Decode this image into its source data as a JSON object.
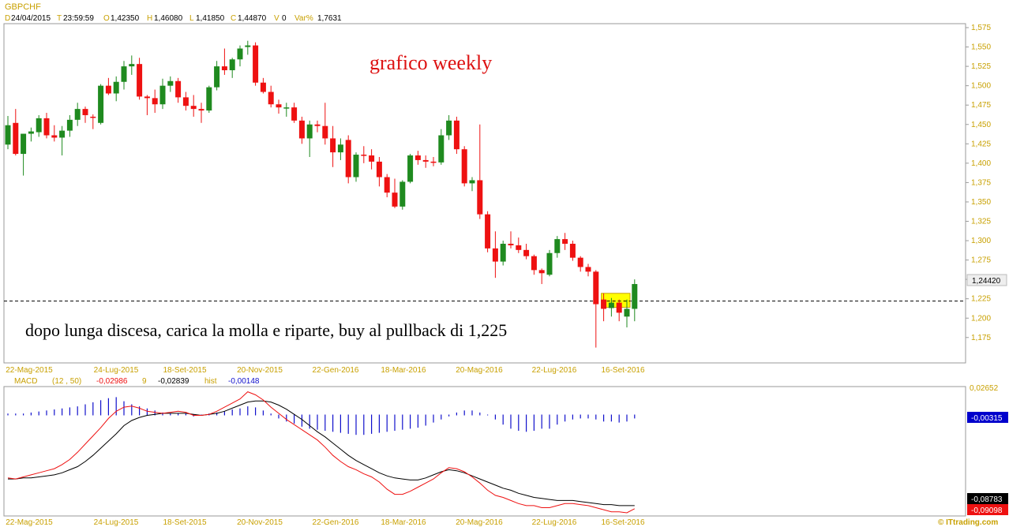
{
  "symbol": "GBPCHF",
  "header": {
    "d_label": "D",
    "date": "24/04/2015",
    "t_label": "T",
    "time": "23:59:59",
    "o_label": "O",
    "open": "1,42350",
    "h_label": "H",
    "high": "1,46080",
    "l_label": "L",
    "low": "1,41850",
    "c_label": "C",
    "close": "1,44870",
    "v_label": "V",
    "volume": "0",
    "var_label": "Var%",
    "var": "1,7631"
  },
  "annotations": {
    "title": "grafico weekly",
    "note": "dopo lunga discesa, carica la molla e riparte, buy al pullback di 1,225"
  },
  "price_badge": "1,24420",
  "macd_header": {
    "name": "MACD",
    "params": "(12 , 50)",
    "macd_value": "-0,02986",
    "signal_label": "9",
    "signal_value": "-0,02839",
    "hist_label": "hist",
    "hist_value": "-0,00148"
  },
  "macd_axis": {
    "top_tick": "0,02652",
    "hist_badge": "-0,00315",
    "signal_badge": "-0,08783",
    "macd_badge": "-0,09098"
  },
  "x_tick_labels": [
    "22-Mag-2015",
    "24-Lug-2015",
    "18-Set-2015",
    "20-Nov-2015",
    "22-Gen-2016",
    "18-Mar-2016",
    "20-Mag-2016",
    "22-Lug-2016",
    "16-Set-2016"
  ],
  "y_tick_labels": [
    "1,575",
    "1,550",
    "1,525",
    "1,500",
    "1,475",
    "1,450",
    "1,425",
    "1,400",
    "1,375",
    "1,350",
    "1,325",
    "1,300",
    "1,275",
    "1,250",
    "1,225",
    "1,200",
    "1,175"
  ],
  "watermark": "© ITtrading.com",
  "colors": {
    "up": "#1f8a1f",
    "down": "#ee1111",
    "title": "#dd1111",
    "macd": "#ee1111",
    "signal": "#000000",
    "hist": "#1010cc",
    "highlight": "#ffff00",
    "axis_text": "#c8a000"
  },
  "chart_data": [
    {
      "type": "candlestick",
      "title": "GBPCHF",
      "ylim": [
        1.15,
        1.58
      ],
      "support_level": 1.222,
      "candles": [
        {
          "o": 1.424,
          "h": 1.461,
          "l": 1.418,
          "c": 1.449
        },
        {
          "o": 1.452,
          "h": 1.47,
          "l": 1.41,
          "c": 1.412
        },
        {
          "o": 1.412,
          "h": 1.438,
          "l": 1.384,
          "c": 1.438
        },
        {
          "o": 1.438,
          "h": 1.446,
          "l": 1.428,
          "c": 1.441
        },
        {
          "o": 1.44,
          "h": 1.462,
          "l": 1.434,
          "c": 1.458
        },
        {
          "o": 1.458,
          "h": 1.465,
          "l": 1.432,
          "c": 1.436
        },
        {
          "o": 1.436,
          "h": 1.449,
          "l": 1.428,
          "c": 1.433
        },
        {
          "o": 1.433,
          "h": 1.448,
          "l": 1.41,
          "c": 1.442
        },
        {
          "o": 1.442,
          "h": 1.462,
          "l": 1.434,
          "c": 1.456
        },
        {
          "o": 1.456,
          "h": 1.478,
          "l": 1.448,
          "c": 1.47
        },
        {
          "o": 1.47,
          "h": 1.473,
          "l": 1.452,
          "c": 1.462
        },
        {
          "o": 1.46,
          "h": 1.463,
          "l": 1.444,
          "c": 1.459
        },
        {
          "o": 1.452,
          "h": 1.502,
          "l": 1.45,
          "c": 1.5
        },
        {
          "o": 1.5,
          "h": 1.51,
          "l": 1.488,
          "c": 1.49
        },
        {
          "o": 1.49,
          "h": 1.512,
          "l": 1.48,
          "c": 1.505
        },
        {
          "o": 1.505,
          "h": 1.532,
          "l": 1.495,
          "c": 1.525
        },
        {
          "o": 1.525,
          "h": 1.539,
          "l": 1.514,
          "c": 1.528
        },
        {
          "o": 1.528,
          "h": 1.536,
          "l": 1.482,
          "c": 1.486
        },
        {
          "o": 1.486,
          "h": 1.488,
          "l": 1.462,
          "c": 1.484
        },
        {
          "o": 1.484,
          "h": 1.495,
          "l": 1.465,
          "c": 1.476
        },
        {
          "o": 1.476,
          "h": 1.509,
          "l": 1.47,
          "c": 1.5
        },
        {
          "o": 1.5,
          "h": 1.512,
          "l": 1.492,
          "c": 1.506
        },
        {
          "o": 1.506,
          "h": 1.51,
          "l": 1.478,
          "c": 1.485
        },
        {
          "o": 1.485,
          "h": 1.492,
          "l": 1.468,
          "c": 1.474
        },
        {
          "o": 1.474,
          "h": 1.488,
          "l": 1.46,
          "c": 1.47
        },
        {
          "o": 1.47,
          "h": 1.478,
          "l": 1.452,
          "c": 1.468
        },
        {
          "o": 1.468,
          "h": 1.5,
          "l": 1.465,
          "c": 1.498
        },
        {
          "o": 1.498,
          "h": 1.532,
          "l": 1.494,
          "c": 1.525
        },
        {
          "o": 1.525,
          "h": 1.548,
          "l": 1.514,
          "c": 1.52
        },
        {
          "o": 1.52,
          "h": 1.536,
          "l": 1.51,
          "c": 1.534
        },
        {
          "o": 1.534,
          "h": 1.552,
          "l": 1.525,
          "c": 1.548
        },
        {
          "o": 1.55,
          "h": 1.558,
          "l": 1.54,
          "c": 1.552
        },
        {
          "o": 1.552,
          "h": 1.556,
          "l": 1.5,
          "c": 1.504
        },
        {
          "o": 1.504,
          "h": 1.51,
          "l": 1.49,
          "c": 1.492
        },
        {
          "o": 1.492,
          "h": 1.5,
          "l": 1.472,
          "c": 1.476
        },
        {
          "o": 1.476,
          "h": 1.482,
          "l": 1.464,
          "c": 1.472
        },
        {
          "o": 1.472,
          "h": 1.478,
          "l": 1.46,
          "c": 1.472
        },
        {
          "o": 1.472,
          "h": 1.478,
          "l": 1.452,
          "c": 1.455
        },
        {
          "o": 1.455,
          "h": 1.46,
          "l": 1.425,
          "c": 1.432
        },
        {
          "o": 1.432,
          "h": 1.455,
          "l": 1.408,
          "c": 1.45
        },
        {
          "o": 1.45,
          "h": 1.455,
          "l": 1.44,
          "c": 1.448
        },
        {
          "o": 1.448,
          "h": 1.478,
          "l": 1.424,
          "c": 1.432
        },
        {
          "o": 1.432,
          "h": 1.448,
          "l": 1.395,
          "c": 1.414
        },
        {
          "o": 1.414,
          "h": 1.432,
          "l": 1.404,
          "c": 1.424
        },
        {
          "o": 1.43,
          "h": 1.436,
          "l": 1.374,
          "c": 1.382
        },
        {
          "o": 1.382,
          "h": 1.414,
          "l": 1.376,
          "c": 1.411
        },
        {
          "o": 1.411,
          "h": 1.422,
          "l": 1.4,
          "c": 1.41
        },
        {
          "o": 1.41,
          "h": 1.418,
          "l": 1.392,
          "c": 1.402
        },
        {
          "o": 1.402,
          "h": 1.408,
          "l": 1.37,
          "c": 1.382
        },
        {
          "o": 1.382,
          "h": 1.386,
          "l": 1.356,
          "c": 1.362
        },
        {
          "o": 1.362,
          "h": 1.38,
          "l": 1.342,
          "c": 1.344
        },
        {
          "o": 1.344,
          "h": 1.378,
          "l": 1.34,
          "c": 1.376
        },
        {
          "o": 1.376,
          "h": 1.412,
          "l": 1.374,
          "c": 1.41
        },
        {
          "o": 1.41,
          "h": 1.416,
          "l": 1.398,
          "c": 1.404
        },
        {
          "o": 1.404,
          "h": 1.41,
          "l": 1.394,
          "c": 1.402
        },
        {
          "o": 1.402,
          "h": 1.408,
          "l": 1.396,
          "c": 1.401
        },
        {
          "o": 1.401,
          "h": 1.444,
          "l": 1.398,
          "c": 1.436
        },
        {
          "o": 1.436,
          "h": 1.462,
          "l": 1.43,
          "c": 1.455
        },
        {
          "o": 1.455,
          "h": 1.46,
          "l": 1.412,
          "c": 1.418
        },
        {
          "o": 1.418,
          "h": 1.422,
          "l": 1.37,
          "c": 1.374
        },
        {
          "o": 1.374,
          "h": 1.382,
          "l": 1.364,
          "c": 1.378
        },
        {
          "o": 1.378,
          "h": 1.45,
          "l": 1.328,
          "c": 1.334
        },
        {
          "o": 1.334,
          "h": 1.338,
          "l": 1.285,
          "c": 1.29
        },
        {
          "o": 1.29,
          "h": 1.312,
          "l": 1.252,
          "c": 1.273
        },
        {
          "o": 1.273,
          "h": 1.3,
          "l": 1.268,
          "c": 1.296
        },
        {
          "o": 1.296,
          "h": 1.312,
          "l": 1.29,
          "c": 1.294
        },
        {
          "o": 1.294,
          "h": 1.304,
          "l": 1.284,
          "c": 1.288
        },
        {
          "o": 1.288,
          "h": 1.296,
          "l": 1.276,
          "c": 1.28
        },
        {
          "o": 1.28,
          "h": 1.282,
          "l": 1.256,
          "c": 1.262
        },
        {
          "o": 1.262,
          "h": 1.264,
          "l": 1.244,
          "c": 1.258
        },
        {
          "o": 1.256,
          "h": 1.288,
          "l": 1.254,
          "c": 1.284
        },
        {
          "o": 1.284,
          "h": 1.306,
          "l": 1.278,
          "c": 1.302
        },
        {
          "o": 1.302,
          "h": 1.31,
          "l": 1.288,
          "c": 1.296
        },
        {
          "o": 1.296,
          "h": 1.3,
          "l": 1.274,
          "c": 1.278
        },
        {
          "o": 1.278,
          "h": 1.28,
          "l": 1.26,
          "c": 1.266
        },
        {
          "o": 1.266,
          "h": 1.27,
          "l": 1.254,
          "c": 1.26
        },
        {
          "o": 1.26,
          "h": 1.262,
          "l": 1.162,
          "c": 1.218
        },
        {
          "o": 1.224,
          "h": 1.232,
          "l": 1.196,
          "c": 1.212
        },
        {
          "o": 1.213,
          "h": 1.226,
          "l": 1.202,
          "c": 1.22
        },
        {
          "o": 1.22,
          "h": 1.224,
          "l": 1.196,
          "c": 1.207
        },
        {
          "o": 1.202,
          "h": 1.224,
          "l": 1.188,
          "c": 1.212
        },
        {
          "o": 1.212,
          "h": 1.25,
          "l": 1.196,
          "c": 1.244
        }
      ]
    },
    {
      "type": "macd",
      "title": "MACD",
      "params": [
        12,
        50,
        9
      ],
      "ylim": [
        -0.095,
        0.0265
      ],
      "macd": [
        -0.061,
        -0.062,
        -0.06,
        -0.058,
        -0.056,
        -0.054,
        -0.052,
        -0.048,
        -0.043,
        -0.036,
        -0.028,
        -0.02,
        -0.012,
        -0.003,
        0.004,
        0.008,
        0.009,
        0.007,
        0.004,
        0.003,
        0.002,
        0.003,
        0.004,
        0.003,
        0.0,
        0.0,
        0.001,
        0.004,
        0.008,
        0.012,
        0.016,
        0.023,
        0.02,
        0.015,
        0.008,
        0.002,
        -0.004,
        -0.009,
        -0.014,
        -0.019,
        -0.024,
        -0.031,
        -0.039,
        -0.045,
        -0.05,
        -0.053,
        -0.057,
        -0.06,
        -0.065,
        -0.072,
        -0.077,
        -0.077,
        -0.074,
        -0.07,
        -0.066,
        -0.062,
        -0.056,
        -0.051,
        -0.052,
        -0.055,
        -0.06,
        -0.066,
        -0.073,
        -0.078,
        -0.08,
        -0.083,
        -0.086,
        -0.088,
        -0.088,
        -0.09,
        -0.09,
        -0.088,
        -0.086,
        -0.086,
        -0.087,
        -0.088,
        -0.09,
        -0.092,
        -0.094,
        -0.094,
        -0.095,
        -0.091
      ],
      "signal": [
        -0.062,
        -0.062,
        -0.061,
        -0.061,
        -0.06,
        -0.059,
        -0.058,
        -0.056,
        -0.053,
        -0.05,
        -0.045,
        -0.039,
        -0.032,
        -0.025,
        -0.018,
        -0.01,
        -0.005,
        -0.002,
        0.0,
        0.001,
        0.002,
        0.002,
        0.002,
        0.002,
        0.001,
        0.0,
        0.001,
        0.002,
        0.004,
        0.007,
        0.01,
        0.013,
        0.014,
        0.014,
        0.013,
        0.01,
        0.006,
        0.001,
        -0.004,
        -0.01,
        -0.016,
        -0.021,
        -0.027,
        -0.033,
        -0.039,
        -0.044,
        -0.048,
        -0.052,
        -0.056,
        -0.059,
        -0.061,
        -0.062,
        -0.063,
        -0.063,
        -0.061,
        -0.058,
        -0.055,
        -0.053,
        -0.054,
        -0.056,
        -0.059,
        -0.062,
        -0.065,
        -0.068,
        -0.071,
        -0.073,
        -0.076,
        -0.078,
        -0.08,
        -0.081,
        -0.082,
        -0.083,
        -0.083,
        -0.083,
        -0.084,
        -0.085,
        -0.086,
        -0.087,
        -0.087,
        -0.088,
        -0.088,
        -0.088
      ],
      "histogram": [
        0.001,
        0.001,
        0.001,
        0.002,
        0.003,
        0.004,
        0.005,
        0.006,
        0.007,
        0.008,
        0.01,
        0.012,
        0.014,
        0.016,
        0.017,
        0.013,
        0.01,
        0.008,
        0.006,
        0.004,
        0.002,
        0.001,
        0.001,
        0.001,
        -0.001,
        0.0,
        0.001,
        0.002,
        0.003,
        0.005,
        0.006,
        0.008,
        0.007,
        0.004,
        0.001,
        -0.003,
        -0.006,
        -0.008,
        -0.011,
        -0.013,
        -0.014,
        -0.015,
        -0.016,
        -0.017,
        -0.018,
        -0.019,
        -0.019,
        -0.018,
        -0.017,
        -0.016,
        -0.015,
        -0.014,
        -0.013,
        -0.012,
        -0.01,
        -0.007,
        -0.004,
        -0.001,
        0.002,
        0.004,
        0.004,
        0.002,
        0.0,
        -0.004,
        -0.009,
        -0.013,
        -0.015,
        -0.016,
        -0.015,
        -0.013,
        -0.013,
        -0.009,
        -0.006,
        -0.004,
        -0.003,
        -0.003,
        -0.004,
        -0.006,
        -0.006,
        -0.007,
        -0.006,
        -0.003
      ]
    }
  ]
}
